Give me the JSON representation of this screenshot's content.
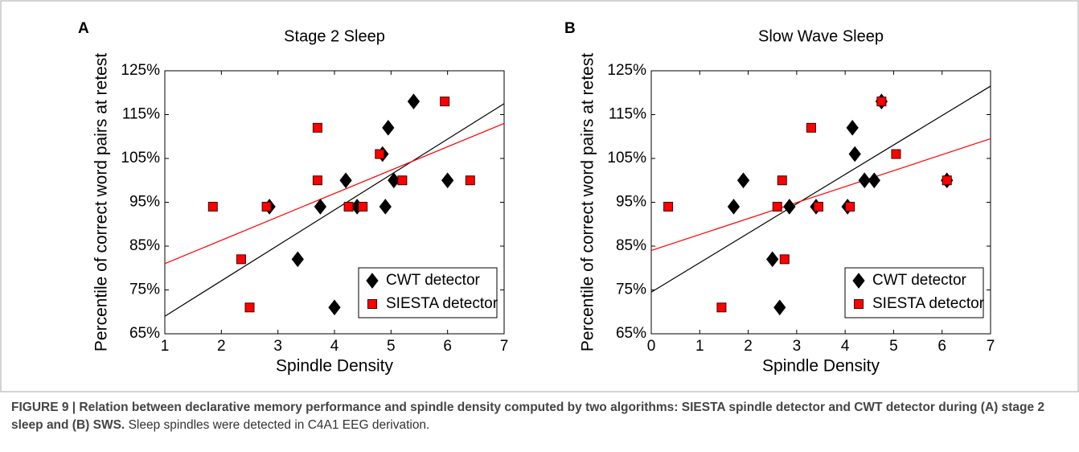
{
  "chart_data": [
    {
      "type": "scatter",
      "panel_label": "A",
      "title": "Stage 2 Sleep",
      "xlabel": "Spindle Density",
      "ylabel": "Percentile of correct word pairs at retest",
      "xlim": [
        1,
        7
      ],
      "xticks": [
        1,
        2,
        3,
        4,
        5,
        6,
        7
      ],
      "ylim": [
        65,
        125
      ],
      "yticks": [
        {
          "value": 65,
          "label": "65%"
        },
        {
          "value": 75,
          "label": "75%"
        },
        {
          "value": 85,
          "label": "85%"
        },
        {
          "value": 95,
          "label": "95%"
        },
        {
          "value": 105,
          "label": "105%"
        },
        {
          "value": 115,
          "label": "115%"
        },
        {
          "value": 125,
          "label": "125%"
        }
      ],
      "legend": "lower right",
      "series": [
        {
          "name": "CWT detector",
          "color": "#000000",
          "marker": "diamond",
          "x": [
            2.85,
            3.35,
            3.75,
            4.0,
            4.2,
            4.4,
            4.85,
            4.9,
            4.95,
            5.05,
            5.4,
            6.0
          ],
          "y": [
            94,
            82,
            94,
            71,
            100,
            94,
            106,
            94,
            112,
            100,
            118,
            100
          ],
          "trend": {
            "x": [
              1,
              7
            ],
            "y": [
              69,
              117.5
            ]
          }
        },
        {
          "name": "SIESTA detector",
          "color": "#ff0000",
          "marker": "square",
          "x": [
            1.85,
            2.35,
            2.5,
            2.8,
            3.7,
            3.7,
            4.25,
            4.5,
            4.8,
            5.2,
            5.95,
            6.4
          ],
          "y": [
            94,
            82,
            71,
            94,
            112,
            100,
            94,
            94,
            106,
            100,
            118,
            100
          ],
          "trend": {
            "x": [
              1,
              7
            ],
            "y": [
              81,
              113
            ]
          }
        }
      ]
    },
    {
      "type": "scatter",
      "panel_label": "B",
      "title": "Slow Wave Sleep",
      "xlabel": "Spindle Density",
      "ylabel": "Percentile of correct word pairs at retest",
      "xlim": [
        0,
        7
      ],
      "xticks": [
        0,
        1,
        2,
        3,
        4,
        5,
        6,
        7
      ],
      "ylim": [
        65,
        125
      ],
      "yticks": [
        {
          "value": 65,
          "label": "65%"
        },
        {
          "value": 75,
          "label": "75%"
        },
        {
          "value": 85,
          "label": "85%"
        },
        {
          "value": 95,
          "label": "95%"
        },
        {
          "value": 105,
          "label": "105%"
        },
        {
          "value": 115,
          "label": "115%"
        },
        {
          "value": 125,
          "label": "125%"
        }
      ],
      "legend": "lower right",
      "series": [
        {
          "name": "CWT detector",
          "color": "#000000",
          "marker": "diamond",
          "x": [
            1.7,
            1.9,
            2.5,
            2.65,
            2.85,
            3.4,
            4.05,
            4.15,
            4.2,
            4.4,
            4.6,
            4.75,
            6.1
          ],
          "y": [
            94,
            100,
            82,
            71,
            94,
            94,
            94,
            112,
            106,
            100,
            100,
            118,
            100
          ],
          "trend": {
            "x": [
              0,
              7
            ],
            "y": [
              74.5,
              121.5
            ]
          }
        },
        {
          "name": "SIESTA detector",
          "color": "#ff0000",
          "marker": "square",
          "x": [
            0.35,
            1.45,
            2.6,
            2.7,
            2.75,
            3.3,
            3.45,
            4.1,
            4.75,
            5.05,
            6.1
          ],
          "y": [
            94,
            71,
            94,
            100,
            82,
            112,
            94,
            94,
            118,
            106,
            100
          ],
          "trend": {
            "x": [
              0,
              7
            ],
            "y": [
              84,
              109.5
            ]
          }
        }
      ]
    }
  ],
  "caption": {
    "bold": "FIGURE 9 | Relation between declarative memory performance and spindle density computed by two algorithms: SIESTA spindle detector and CWT detector during (A) stage 2 sleep and (B) SWS.",
    "text": "Sleep spindles were detected in C4A1 EEG derivation."
  }
}
